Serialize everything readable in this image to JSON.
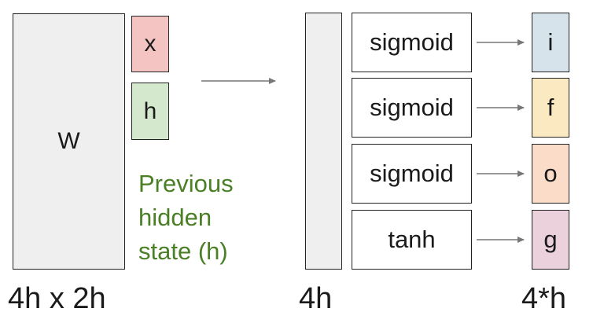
{
  "weight_matrix": {
    "label": "W",
    "dims": "4h x 2h"
  },
  "inputs": {
    "x_label": "x",
    "h_label": "h",
    "prev_hidden_line1": "Previous",
    "prev_hidden_line2": "hidden",
    "prev_hidden_line3": "state (h)"
  },
  "result_vector": {
    "dims": "4h"
  },
  "functions": [
    "sigmoid",
    "sigmoid",
    "sigmoid",
    "tanh"
  ],
  "gates": [
    "i",
    "f",
    "o",
    "g"
  ],
  "gates_dims": "4*h",
  "colors": {
    "x": "#f3c4c2",
    "h": "#d4e8cd",
    "label_green": "#4a7f25",
    "gate_i": "#d6e3ea",
    "gate_f": "#fbe9c1",
    "gate_o": "#fadcc8",
    "gate_g": "#ead1dc"
  }
}
